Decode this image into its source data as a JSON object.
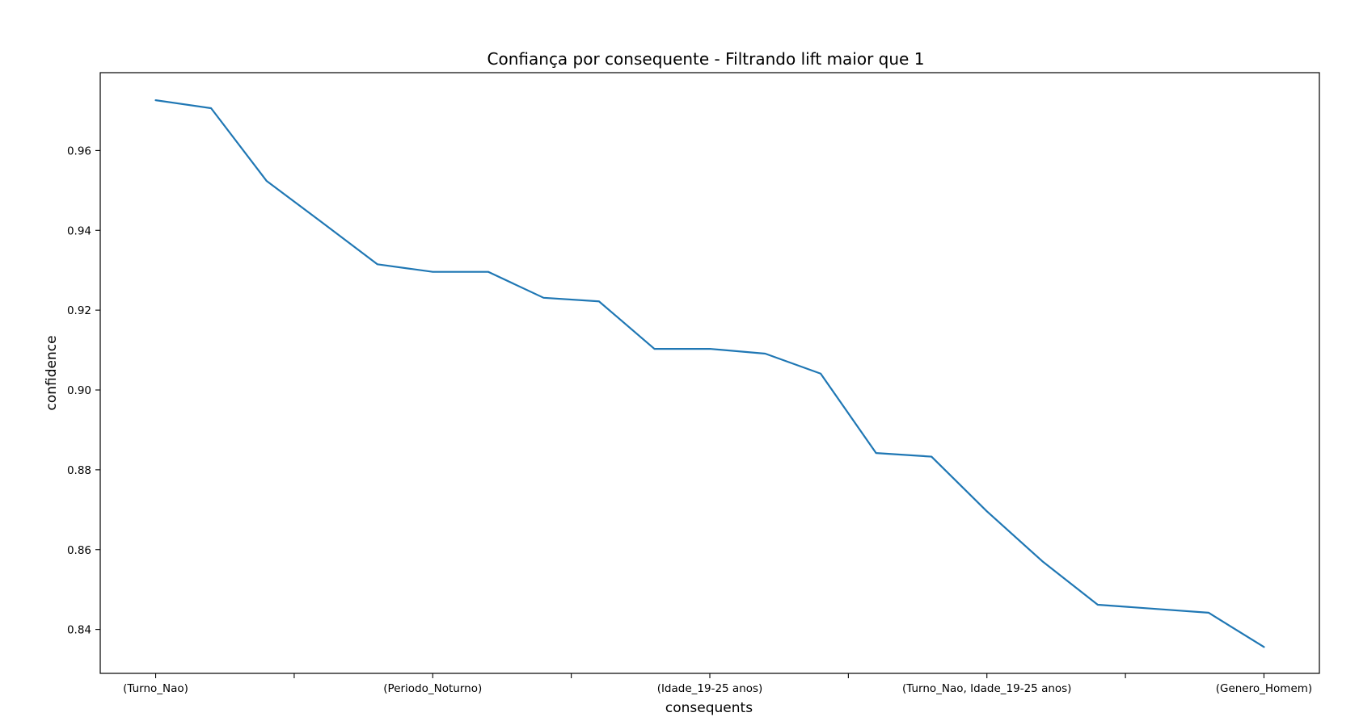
{
  "chart_data": {
    "type": "line",
    "title": "Confiança por consequente - Filtrando lift maior que 1",
    "xlabel": "consequents",
    "ylabel": "confidence",
    "x_tick_labels": [
      {
        "index": 0,
        "label": "(Turno_Nao)"
      },
      {
        "index": 5,
        "label": "(Periodo_Noturno)"
      },
      {
        "index": 10,
        "label": "(Idade_19-25 anos)"
      },
      {
        "index": 15,
        "label": "(Turno_Nao, Idade_19-25 anos)"
      },
      {
        "index": 20,
        "label": "(Genero_Homem)"
      }
    ],
    "x_minor_ticks": [
      2.5,
      7.5,
      12.5,
      17.5
    ],
    "x_range": [
      -1,
      21.0
    ],
    "ylim": [
      0.829,
      0.9795
    ],
    "y_ticks": [
      0.84,
      0.86,
      0.88,
      0.9,
      0.92,
      0.94,
      0.96
    ],
    "y_tick_labels": [
      "0.84",
      "0.86",
      "0.88",
      "0.90",
      "0.92",
      "0.94",
      "0.96"
    ],
    "grid": false,
    "line_color": "#1f77b4",
    "series": [
      {
        "values": [
          0.9726,
          0.9706,
          0.9524,
          0.942,
          0.9315,
          0.9296,
          0.9296,
          0.9231,
          0.9222,
          0.9103,
          0.9103,
          0.9091,
          0.9041,
          0.8842,
          0.8833,
          0.8696,
          0.8571,
          0.8462,
          0.8452,
          0.8442,
          0.8356
        ]
      }
    ]
  }
}
